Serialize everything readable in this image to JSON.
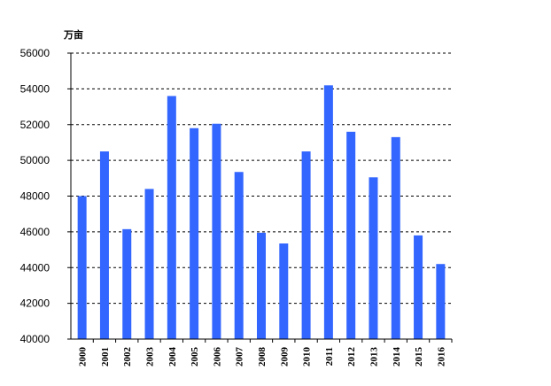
{
  "chart_data": {
    "type": "bar",
    "title": "",
    "unit": "万亩",
    "xlabel": "",
    "ylabel": "",
    "categories": [
      "2000",
      "2001",
      "2002",
      "2003",
      "2004",
      "2005",
      "2006",
      "2007",
      "2008",
      "2009",
      "2010",
      "2011",
      "2012",
      "2013",
      "2014",
      "2015",
      "2016"
    ],
    "values": [
      48000,
      50500,
      46150,
      48400,
      53600,
      51800,
      52050,
      49350,
      45950,
      45350,
      50500,
      54200,
      51600,
      49050,
      51300,
      45800,
      44200
    ],
    "ylim": [
      40000,
      56000
    ],
    "yticks": [
      "40000",
      "42000",
      "44000",
      "46000",
      "48000",
      "50000",
      "52000",
      "54000",
      "56000"
    ],
    "grid": "horizontal-dashed",
    "legend": "none",
    "bar_color": "#3366ff"
  }
}
